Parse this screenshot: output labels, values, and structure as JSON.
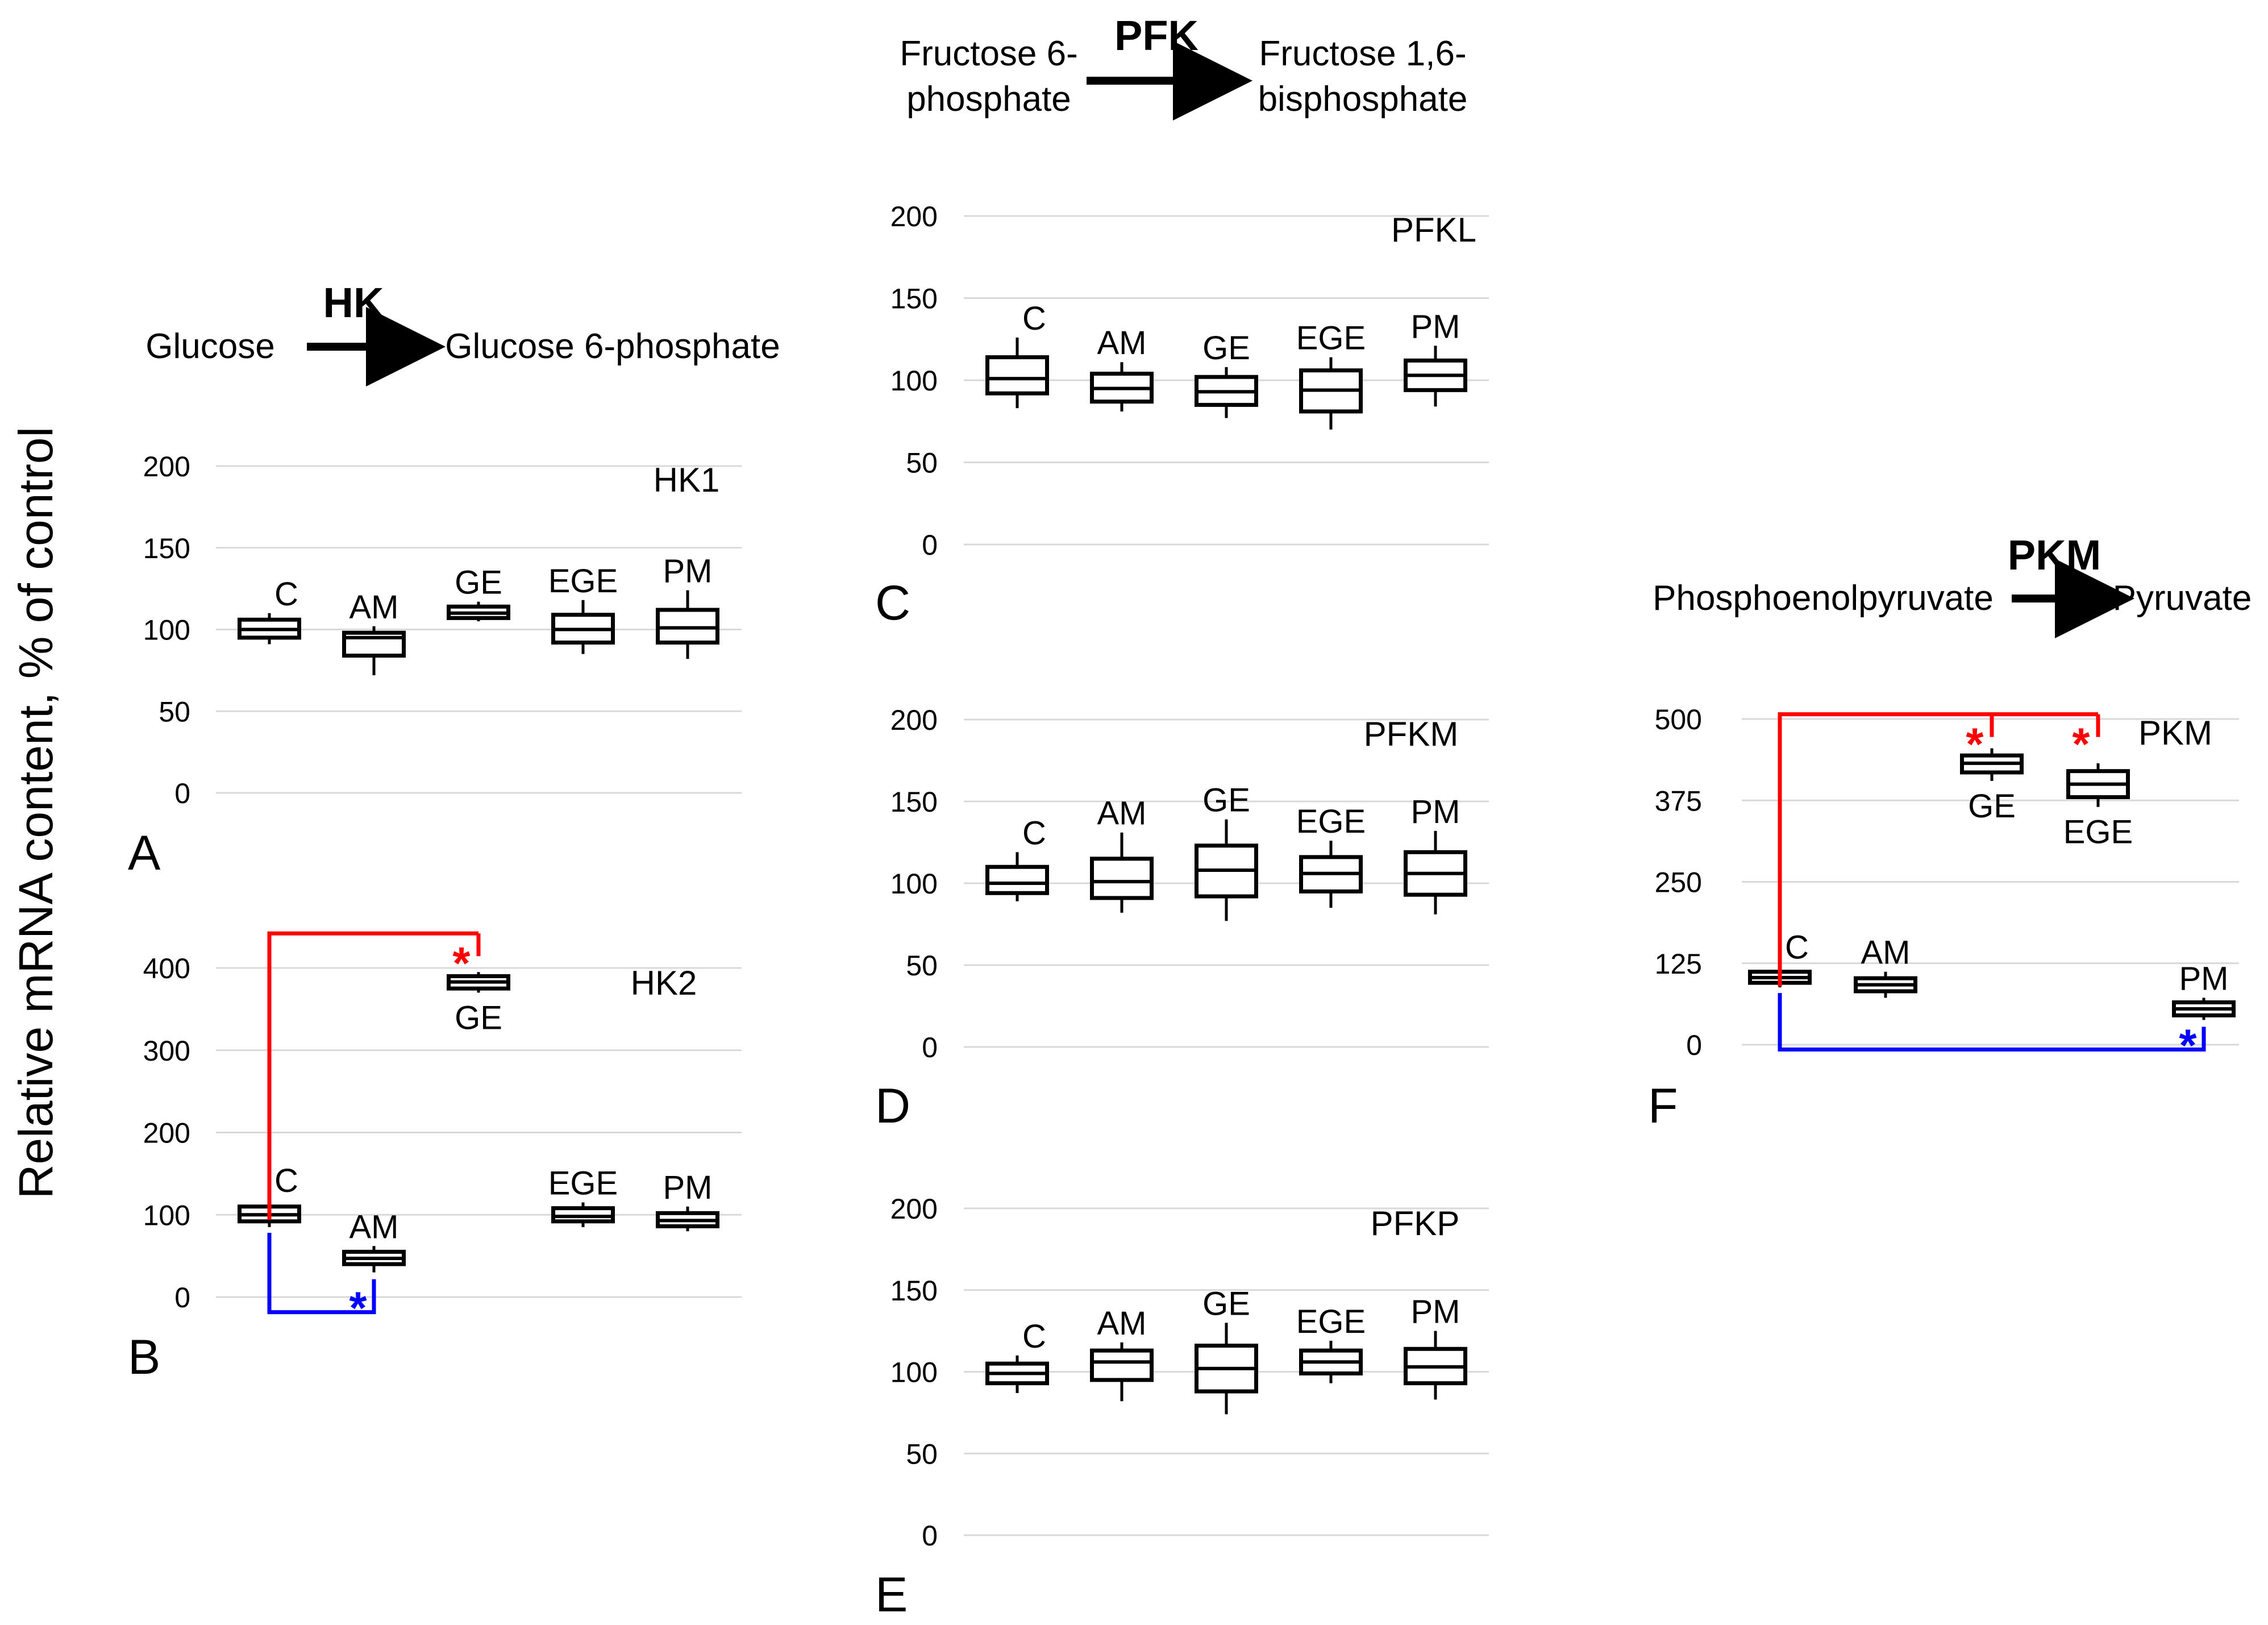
{
  "figure": {
    "ylabel": "Relative mRNA content, % of control"
  },
  "reactions": {
    "hk": {
      "enzyme": "HK",
      "substrate": [
        "Glucose"
      ],
      "product": [
        "Glucose 6-phosphate"
      ]
    },
    "pfk": {
      "enzyme": "PFK",
      "substrate": [
        "Fructose 6-",
        "phosphate"
      ],
      "product": [
        "Fructose 1,6-",
        "bisphosphate"
      ]
    },
    "pkm": {
      "enzyme": "PKM",
      "substrate": [
        "Phosphoenolpyruvate"
      ],
      "product": [
        "Pyruvate"
      ]
    }
  },
  "chart_data": [
    {
      "id": "A",
      "panel_label": "A",
      "title": "HK1",
      "type": "boxplot",
      "yticks": [
        0,
        50,
        100,
        150,
        200
      ],
      "ylim": [
        0,
        200
      ],
      "categories": [
        "C",
        "AM",
        "GE",
        "EGE",
        "PM"
      ],
      "boxes": [
        {
          "label": "C",
          "whisker_low": 91,
          "q1": 95,
          "median": 100,
          "q3": 106,
          "whisker_high": 110,
          "label_pos": "above"
        },
        {
          "label": "AM",
          "whisker_low": 72,
          "q1": 84,
          "median": 95,
          "q3": 98,
          "whisker_high": 102,
          "label_pos": "above"
        },
        {
          "label": "GE",
          "whisker_low": 105,
          "q1": 107,
          "median": 110,
          "q3": 114,
          "whisker_high": 117,
          "label_pos": "above"
        },
        {
          "label": "EGE",
          "whisker_low": 85,
          "q1": 92,
          "median": 100,
          "q3": 109,
          "whisker_high": 118,
          "label_pos": "above"
        },
        {
          "label": "PM",
          "whisker_low": 82,
          "q1": 92,
          "median": 101,
          "q3": 112,
          "whisker_high": 124,
          "label_pos": "above"
        }
      ],
      "significance": []
    },
    {
      "id": "B",
      "panel_label": "B",
      "title": "HK2",
      "type": "boxplot",
      "yticks": [
        0,
        100,
        200,
        300,
        400
      ],
      "ylim": [
        0,
        400
      ],
      "categories": [
        "C",
        "AM",
        "GE",
        "EGE",
        "PM"
      ],
      "boxes": [
        {
          "label": "C",
          "whisker_low": 85,
          "q1": 92,
          "median": 100,
          "q3": 110,
          "whisker_high": 118,
          "label_pos": "above"
        },
        {
          "label": "AM",
          "whisker_low": 30,
          "q1": 40,
          "median": 47,
          "q3": 55,
          "whisker_high": 62,
          "label_pos": "above"
        },
        {
          "label": "GE",
          "whisker_low": 370,
          "q1": 375,
          "median": 383,
          "q3": 390,
          "whisker_high": 395,
          "label_pos": "below"
        },
        {
          "label": "EGE",
          "whisker_low": 85,
          "q1": 92,
          "median": 98,
          "q3": 108,
          "whisker_high": 115,
          "label_pos": "above"
        },
        {
          "label": "PM",
          "whisker_low": 80,
          "q1": 86,
          "median": 93,
          "q3": 102,
          "whisker_high": 110,
          "label_pos": "above"
        }
      ],
      "significance": [
        {
          "from": "C",
          "to": "GE",
          "direction": "up",
          "color": "#ff0000",
          "star": "*"
        },
        {
          "from": "C",
          "to": "AM",
          "direction": "down",
          "color": "#0000ff",
          "star": "*"
        }
      ]
    },
    {
      "id": "C",
      "panel_label": "C",
      "title": "PFKL",
      "type": "boxplot",
      "yticks": [
        0,
        50,
        100,
        150,
        200
      ],
      "ylim": [
        0,
        200
      ],
      "categories": [
        "C",
        "AM",
        "GE",
        "EGE",
        "PM"
      ],
      "boxes": [
        {
          "label": "C",
          "whisker_low": 83,
          "q1": 92,
          "median": 101,
          "q3": 114,
          "whisker_high": 126,
          "label_pos": "above"
        },
        {
          "label": "AM",
          "whisker_low": 81,
          "q1": 87,
          "median": 95,
          "q3": 104,
          "whisker_high": 111,
          "label_pos": "above"
        },
        {
          "label": "GE",
          "whisker_low": 77,
          "q1": 85,
          "median": 93,
          "q3": 102,
          "whisker_high": 108,
          "label_pos": "above"
        },
        {
          "label": "EGE",
          "whisker_low": 70,
          "q1": 81,
          "median": 94,
          "q3": 106,
          "whisker_high": 114,
          "label_pos": "above"
        },
        {
          "label": "PM",
          "whisker_low": 84,
          "q1": 94,
          "median": 103,
          "q3": 112,
          "whisker_high": 121,
          "label_pos": "above"
        }
      ],
      "significance": []
    },
    {
      "id": "D",
      "panel_label": "D",
      "title": "PFKM",
      "type": "boxplot",
      "yticks": [
        0,
        50,
        100,
        150,
        200
      ],
      "ylim": [
        0,
        200
      ],
      "categories": [
        "C",
        "AM",
        "GE",
        "EGE",
        "PM"
      ],
      "boxes": [
        {
          "label": "C",
          "whisker_low": 89,
          "q1": 94,
          "median": 100,
          "q3": 110,
          "whisker_high": 119,
          "label_pos": "above"
        },
        {
          "label": "AM",
          "whisker_low": 82,
          "q1": 91,
          "median": 101,
          "q3": 115,
          "whisker_high": 131,
          "label_pos": "above"
        },
        {
          "label": "GE",
          "whisker_low": 77,
          "q1": 92,
          "median": 108,
          "q3": 123,
          "whisker_high": 139,
          "label_pos": "above"
        },
        {
          "label": "EGE",
          "whisker_low": 85,
          "q1": 95,
          "median": 106,
          "q3": 116,
          "whisker_high": 126,
          "label_pos": "above"
        },
        {
          "label": "PM",
          "whisker_low": 81,
          "q1": 93,
          "median": 106,
          "q3": 119,
          "whisker_high": 132,
          "label_pos": "above"
        }
      ],
      "significance": []
    },
    {
      "id": "E",
      "panel_label": "E",
      "title": "PFKP",
      "type": "boxplot",
      "yticks": [
        0,
        50,
        100,
        150,
        200
      ],
      "ylim": [
        0,
        200
      ],
      "categories": [
        "C",
        "AM",
        "GE",
        "EGE",
        "PM"
      ],
      "boxes": [
        {
          "label": "C",
          "whisker_low": 87,
          "q1": 93,
          "median": 99,
          "q3": 105,
          "whisker_high": 110,
          "label_pos": "above"
        },
        {
          "label": "AM",
          "whisker_low": 82,
          "q1": 95,
          "median": 106,
          "q3": 113,
          "whisker_high": 118,
          "label_pos": "above"
        },
        {
          "label": "GE",
          "whisker_low": 74,
          "q1": 88,
          "median": 102,
          "q3": 116,
          "whisker_high": 130,
          "label_pos": "above"
        },
        {
          "label": "EGE",
          "whisker_low": 93,
          "q1": 99,
          "median": 106,
          "q3": 113,
          "whisker_high": 119,
          "label_pos": "above"
        },
        {
          "label": "PM",
          "whisker_low": 83,
          "q1": 93,
          "median": 103,
          "q3": 114,
          "whisker_high": 125,
          "label_pos": "above"
        }
      ],
      "significance": []
    },
    {
      "id": "F",
      "panel_label": "F",
      "title": "PKM",
      "type": "boxplot",
      "yticks": [
        0,
        125,
        250,
        375,
        500
      ],
      "ylim": [
        0,
        500
      ],
      "categories": [
        "C",
        "AM",
        "GE",
        "EGE",
        "PM"
      ],
      "boxes": [
        {
          "label": "C",
          "whisker_low": 88,
          "q1": 95,
          "median": 103,
          "q3": 112,
          "whisker_high": 120,
          "label_pos": "above"
        },
        {
          "label": "AM",
          "whisker_low": 72,
          "q1": 82,
          "median": 92,
          "q3": 102,
          "whisker_high": 112,
          "label_pos": "above"
        },
        {
          "label": "GE",
          "whisker_low": 405,
          "q1": 418,
          "median": 432,
          "q3": 444,
          "whisker_high": 455,
          "label_pos": "below"
        },
        {
          "label": "EGE",
          "whisker_low": 365,
          "q1": 380,
          "median": 400,
          "q3": 420,
          "whisker_high": 432,
          "label_pos": "below"
        },
        {
          "label": "PM",
          "whisker_low": 38,
          "q1": 45,
          "median": 55,
          "q3": 65,
          "whisker_high": 72,
          "label_pos": "above"
        }
      ],
      "significance": [
        {
          "from": "C",
          "to": [
            "GE",
            "EGE"
          ],
          "direction": "up",
          "color": "#ff0000",
          "star": "*"
        },
        {
          "from": "C",
          "to": "PM",
          "direction": "down",
          "color": "#0000ff",
          "star": "*"
        }
      ]
    }
  ]
}
